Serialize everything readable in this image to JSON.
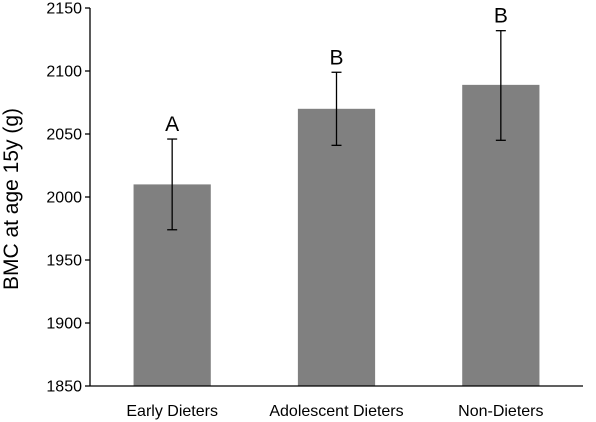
{
  "chart_data": {
    "type": "bar",
    "ylabel": "BMC at age 15y (g)",
    "xlabel": "",
    "ylim": [
      1850,
      2150
    ],
    "yticks": [
      1850,
      1900,
      1950,
      2000,
      2050,
      2100,
      2150
    ],
    "grid": false,
    "categories": [
      "Early Dieters",
      "Adolescent Dieters",
      "Non-Dieters"
    ],
    "values": [
      2010,
      2070,
      2089
    ],
    "error_low": [
      1974,
      2041,
      2045
    ],
    "error_high": [
      2046,
      2099,
      2132
    ],
    "significance_labels": [
      "A",
      "B",
      "B"
    ],
    "bar_color": "#808080"
  }
}
